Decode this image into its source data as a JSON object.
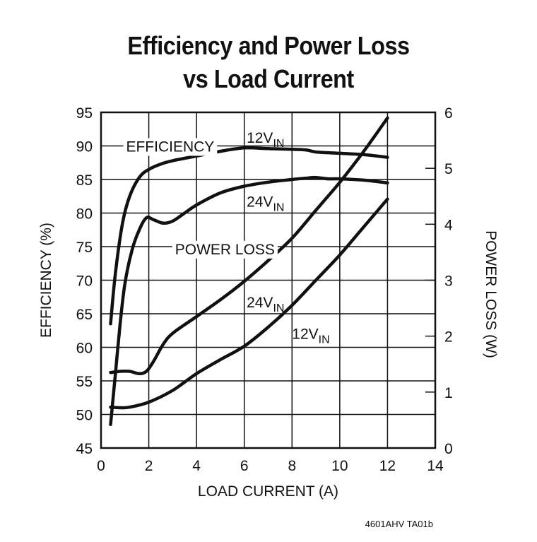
{
  "chart_data": {
    "type": "line",
    "title": "Efficiency and Power Loss vs Load Current",
    "title_lines": [
      "Efficiency and Power Loss",
      "vs Load Current"
    ],
    "xlabel": "LOAD CURRENT (A)",
    "ylabel_left": "EFFICIENCY (%)",
    "ylabel_right": "POWER LOSS (W)",
    "xlim": [
      0,
      14
    ],
    "ylim_left": [
      45,
      95
    ],
    "ylim_right": [
      0,
      6
    ],
    "x_ticks": [
      0,
      2,
      4,
      6,
      8,
      10,
      12,
      14
    ],
    "y_ticks_left": [
      45,
      50,
      55,
      60,
      65,
      70,
      75,
      80,
      85,
      90,
      95
    ],
    "y_ticks_right": [
      0,
      1,
      2,
      3,
      4,
      5,
      6
    ],
    "grid": true,
    "series": [
      {
        "name": "Efficiency 12VIN",
        "axis": "left",
        "x": [
          0.4,
          0.6,
          0.9,
          1.2,
          1.6,
          2.0,
          2.5,
          3.0,
          4.0,
          5.0,
          6.0,
          7.0,
          8.0,
          8.6,
          9.0,
          10.0,
          11.0,
          12.0
        ],
        "y": [
          63.5,
          71.0,
          78.5,
          82.5,
          85.3,
          86.5,
          87.3,
          87.8,
          88.5,
          89.2,
          89.7,
          89.6,
          89.5,
          89.4,
          89.1,
          88.9,
          88.7,
          88.3
        ]
      },
      {
        "name": "Efficiency 24VIN",
        "axis": "left",
        "x": [
          0.4,
          0.6,
          0.8,
          1.0,
          1.3,
          1.6,
          1.9,
          2.2,
          2.6,
          3.0,
          3.5,
          4.0,
          5.0,
          6.0,
          7.0,
          8.0,
          8.6,
          9.0,
          9.5,
          10.0,
          11.0,
          12.0
        ],
        "y": [
          48.5,
          56.0,
          63.5,
          69.5,
          74.5,
          77.5,
          79.3,
          79.0,
          78.5,
          78.8,
          80.0,
          81.2,
          83.0,
          84.0,
          84.6,
          85.0,
          85.2,
          85.3,
          85.1,
          85.1,
          84.9,
          84.5
        ]
      },
      {
        "name": "Power Loss 24VIN",
        "axis": "right",
        "x": [
          0.4,
          0.8,
          1.2,
          1.6,
          1.9,
          2.2,
          2.6,
          3.0,
          4.0,
          5.0,
          6.0,
          7.0,
          8.0,
          9.0,
          10.0,
          11.0,
          12.0
        ],
        "y": [
          1.35,
          1.37,
          1.37,
          1.33,
          1.37,
          1.55,
          1.85,
          2.05,
          2.35,
          2.65,
          2.98,
          3.35,
          3.75,
          4.25,
          4.75,
          5.3,
          5.9
        ]
      },
      {
        "name": "Power Loss 12VIN",
        "axis": "right",
        "x": [
          0.4,
          0.8,
          1.2,
          2.0,
          3.0,
          4.0,
          5.0,
          6.0,
          7.0,
          8.0,
          9.0,
          10.0,
          11.0,
          12.0
        ],
        "y": [
          0.73,
          0.72,
          0.73,
          0.82,
          1.03,
          1.33,
          1.58,
          1.82,
          2.16,
          2.55,
          3.0,
          3.45,
          3.95,
          4.45
        ]
      }
    ],
    "annotations": [
      {
        "id": "eff12",
        "text": "12V",
        "sub": "IN"
      },
      {
        "id": "eff",
        "text": "EFFICIENCY",
        "sub": ""
      },
      {
        "id": "eff24",
        "text": "24V",
        "sub": "IN"
      },
      {
        "id": "ploss",
        "text": "POWER LOSS",
        "sub": ""
      },
      {
        "id": "ploss24",
        "text": "24V",
        "sub": "IN"
      },
      {
        "id": "ploss12",
        "text": "12V",
        "sub": "IN"
      }
    ],
    "figure_code": "4601AHV TA01b"
  }
}
